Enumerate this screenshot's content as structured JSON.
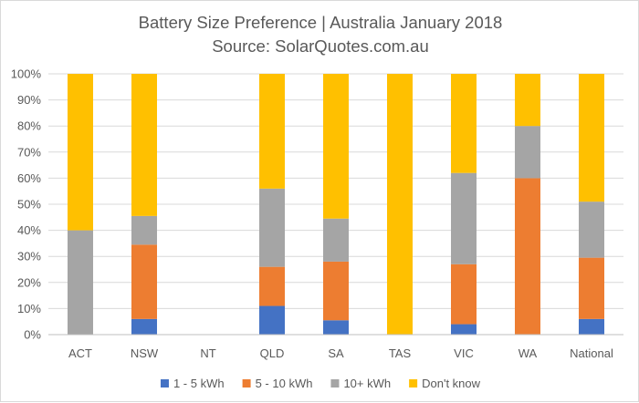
{
  "chart_data": {
    "type": "bar",
    "stacked": true,
    "title": "Battery Size Preference  | Australia January 2018",
    "subtitle": "Source: SolarQuotes.com.au",
    "categories": [
      "ACT",
      "NSW",
      "NT",
      "QLD",
      "SA",
      "TAS",
      "VIC",
      "WA",
      "National"
    ],
    "series": [
      {
        "name": "1 - 5 kWh",
        "color": "#4472c4",
        "values": [
          0,
          6,
          0,
          11,
          5.5,
          0,
          4,
          0,
          6
        ]
      },
      {
        "name": "5 - 10 kWh",
        "color": "#ed7d31",
        "values": [
          0,
          28.5,
          0,
          15,
          22.5,
          0,
          23,
          60,
          23.5
        ]
      },
      {
        "name": "10+ kWh",
        "color": "#a5a5a5",
        "values": [
          40,
          11,
          0,
          30,
          16.5,
          0,
          35,
          20,
          21.5
        ]
      },
      {
        "name": "Don't know",
        "color": "#ffc000",
        "values": [
          60,
          54.5,
          0,
          44,
          55.5,
          100,
          38,
          20,
          49
        ]
      }
    ],
    "yticks": [
      "0%",
      "10%",
      "20%",
      "30%",
      "40%",
      "50%",
      "60%",
      "70%",
      "80%",
      "90%",
      "100%"
    ],
    "ylim": [
      0,
      100
    ],
    "grid": true,
    "legend_position": "bottom",
    "xlabel": "",
    "ylabel": ""
  }
}
